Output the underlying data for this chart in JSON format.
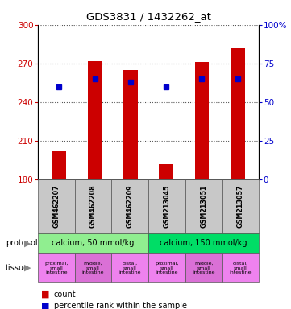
{
  "title": "GDS3831 / 1432262_at",
  "samples": [
    "GSM462207",
    "GSM462208",
    "GSM462209",
    "GSM213045",
    "GSM213051",
    "GSM213057"
  ],
  "count_values": [
    202,
    272,
    265,
    192,
    271,
    282
  ],
  "percentile_values": [
    60,
    65,
    63,
    60,
    65,
    65
  ],
  "ymin": 180,
  "ymax": 300,
  "yticks": [
    180,
    210,
    240,
    270,
    300
  ],
  "y2min": 0,
  "y2max": 100,
  "y2ticks": [
    0,
    25,
    50,
    75,
    100
  ],
  "y2labels": [
    "0",
    "25",
    "50",
    "75",
    "100%"
  ],
  "bar_color": "#cc0000",
  "dot_color": "#0000cc",
  "bar_width": 0.4,
  "protocol_groups": [
    {
      "label": "calcium, 50 mmol/kg",
      "start": 0,
      "end": 3,
      "color": "#90ee90"
    },
    {
      "label": "calcium, 150 mmol/kg",
      "start": 3,
      "end": 6,
      "color": "#00dd66"
    }
  ],
  "tissue_labels": [
    "proximal,\nsmall\nintestine",
    "middle,\nsmall\nintestine",
    "distal,\nsmall\nintestine",
    "proximal,\nsmall\nintestine",
    "middle,\nsmall\nintestine",
    "distal,\nsmall\nintestine"
  ],
  "tissue_colors": [
    "#ee82ee",
    "#da70d6",
    "#ee82ee",
    "#ee82ee",
    "#da70d6",
    "#ee82ee"
  ],
  "bg_color": "#ffffff",
  "label_color_left": "#cc0000",
  "label_color_right": "#0000cc",
  "grid_linestyle": "dotted",
  "grid_color": "#555555"
}
